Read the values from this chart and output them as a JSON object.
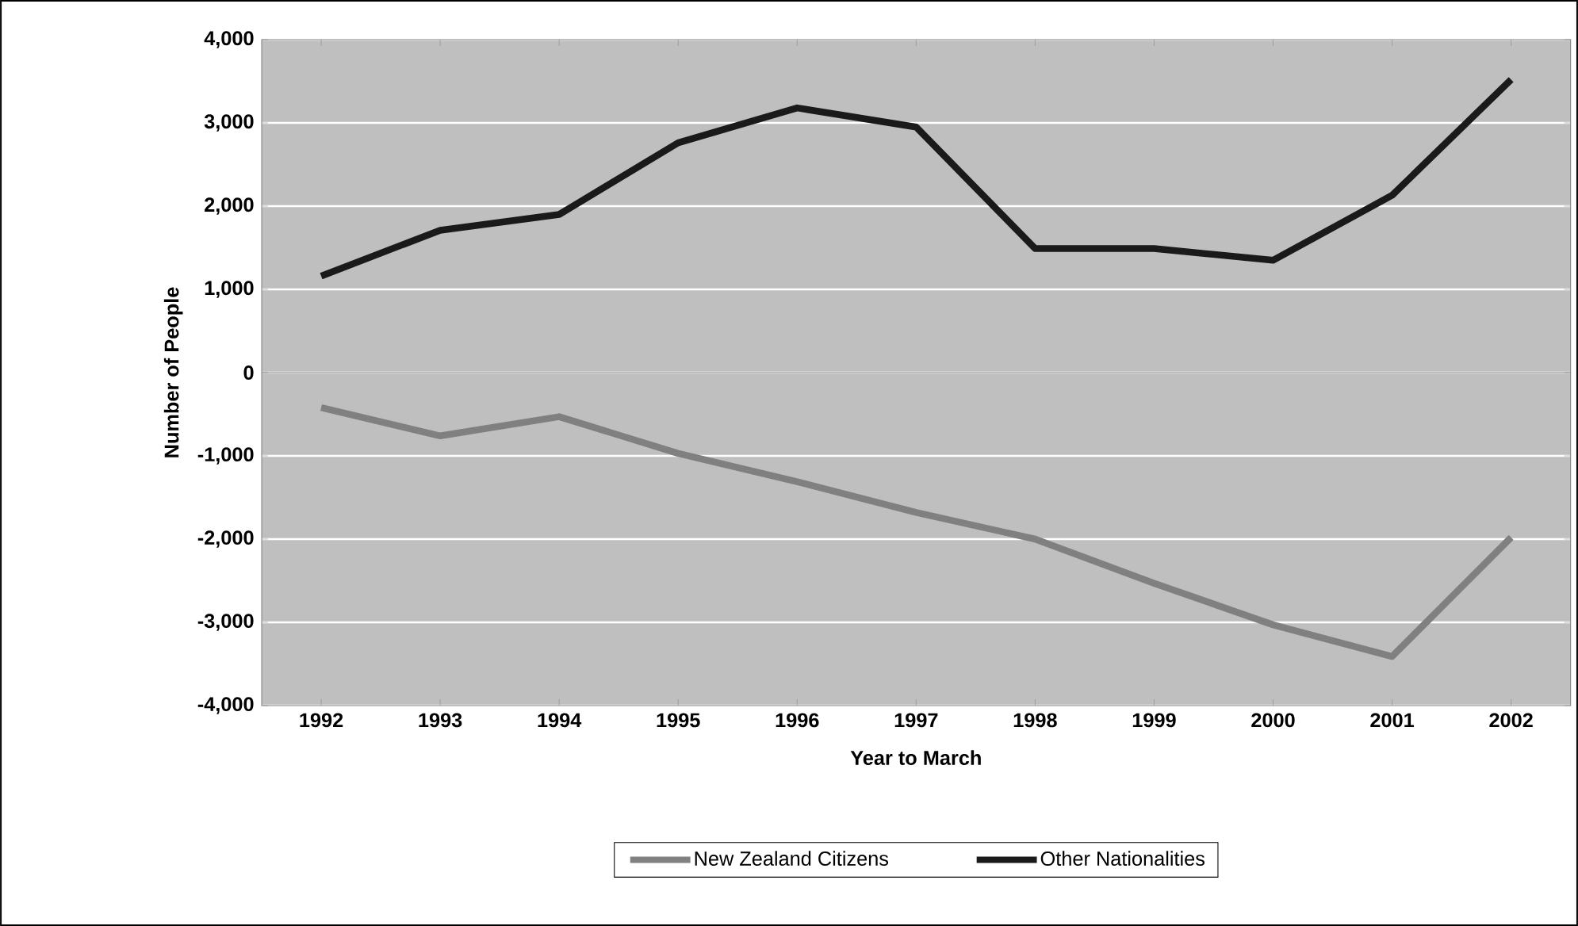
{
  "chart_data": {
    "type": "line",
    "xlabel": "Year to March",
    "ylabel": "Number of People",
    "categories": [
      "1992",
      "1993",
      "1994",
      "1995",
      "1996",
      "1997",
      "1998",
      "1999",
      "2000",
      "2001",
      "2002"
    ],
    "series": [
      {
        "name": "New Zealand Citizens",
        "color": "#808080",
        "values": [
          -420,
          -760,
          -530,
          -970,
          -1310,
          -1680,
          -2000,
          -2530,
          -3030,
          -3410,
          -1980
        ]
      },
      {
        "name": "Other Nationalities",
        "color": "#1a1a1a",
        "values": [
          1160,
          1710,
          1900,
          2760,
          3180,
          2950,
          1490,
          1490,
          1350,
          2130,
          3520
        ]
      }
    ],
    "ylim": [
      -4000,
      4000
    ],
    "yticks": [
      {
        "value": -4000,
        "label": "-4,000"
      },
      {
        "value": -3000,
        "label": "-3,000"
      },
      {
        "value": -2000,
        "label": "-2,000"
      },
      {
        "value": -1000,
        "label": "-1,000"
      },
      0,
      {
        "value": 1000,
        "label": "1,000"
      },
      {
        "value": 2000,
        "label": "2,000"
      },
      {
        "value": 3000,
        "label": "3,000"
      },
      {
        "value": 4000,
        "label": "4,000"
      }
    ],
    "grid": "y",
    "legend": "bottom",
    "marker": "none",
    "line_style": "solid"
  }
}
